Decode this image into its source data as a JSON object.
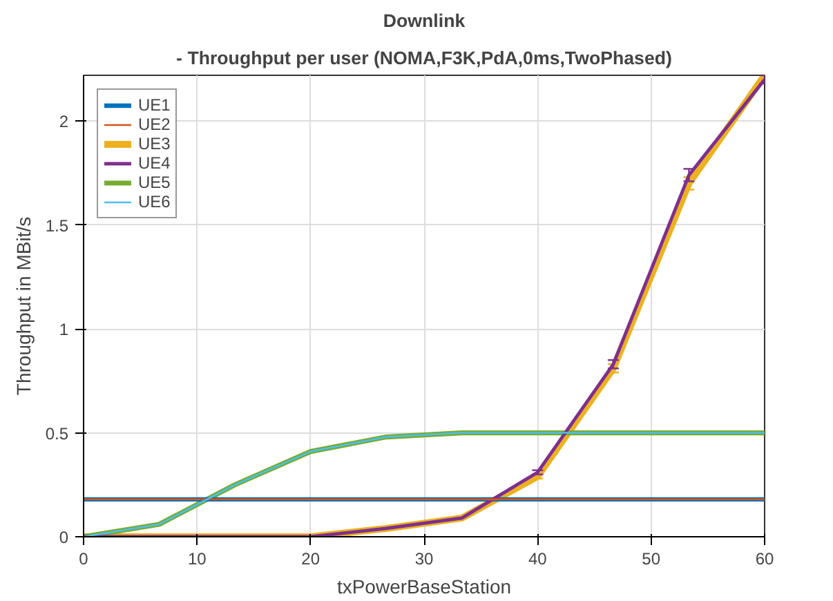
{
  "chart_data": {
    "type": "line",
    "title": "Downlink",
    "subtitle": "- Throughput per user (NOMA,F3K,PdA,0ms,TwoPhased)",
    "xlabel": "txPowerBaseStation",
    "ylabel": "Throughput in MBit/s",
    "x": [
      0,
      6.667,
      13.333,
      20,
      26.667,
      33.333,
      40,
      46.667,
      53.333,
      60
    ],
    "xlim": [
      0,
      60
    ],
    "xticks": [
      0,
      10,
      20,
      30,
      40,
      50,
      60
    ],
    "ylim": [
      0,
      2.22
    ],
    "yticks": [
      0,
      0.5,
      1,
      1.5,
      2
    ],
    "grid": true,
    "legend": "top left",
    "marker": "none",
    "line_style": "solid",
    "series": [
      {
        "name": "UE1",
        "color": "#0072bd",
        "values": [
          0.18,
          0.18,
          0.18,
          0.18,
          0.18,
          0.18,
          0.18,
          0.18,
          0.18,
          0.18
        ]
      },
      {
        "name": "UE2",
        "color": "#d95319",
        "values": [
          0.18,
          0.18,
          0.18,
          0.18,
          0.18,
          0.18,
          0.18,
          0.18,
          0.18,
          0.18
        ]
      },
      {
        "name": "UE3",
        "color": "#edb120",
        "values": [
          0,
          0,
          0,
          0,
          0.04,
          0.09,
          0.29,
          0.81,
          1.7,
          2.22
        ],
        "errors": [
          null,
          null,
          null,
          null,
          null,
          null,
          0.01,
          0.02,
          0.03,
          0.02
        ]
      },
      {
        "name": "UE4",
        "color": "#7e2f8e",
        "values": [
          0,
          0,
          0,
          0,
          0.04,
          0.09,
          0.31,
          0.83,
          1.74,
          2.2
        ],
        "errors": [
          null,
          null,
          null,
          null,
          null,
          null,
          0.01,
          0.02,
          0.03,
          0.02
        ]
      },
      {
        "name": "UE5",
        "color": "#77ac30",
        "values": [
          0,
          0.06,
          0.25,
          0.41,
          0.48,
          0.5,
          0.5,
          0.5,
          0.5,
          0.5
        ]
      },
      {
        "name": "UE6",
        "color": "#4dbeee",
        "values": [
          0,
          0.06,
          0.25,
          0.41,
          0.48,
          0.5,
          0.5,
          0.5,
          0.5,
          0.5
        ]
      }
    ]
  }
}
